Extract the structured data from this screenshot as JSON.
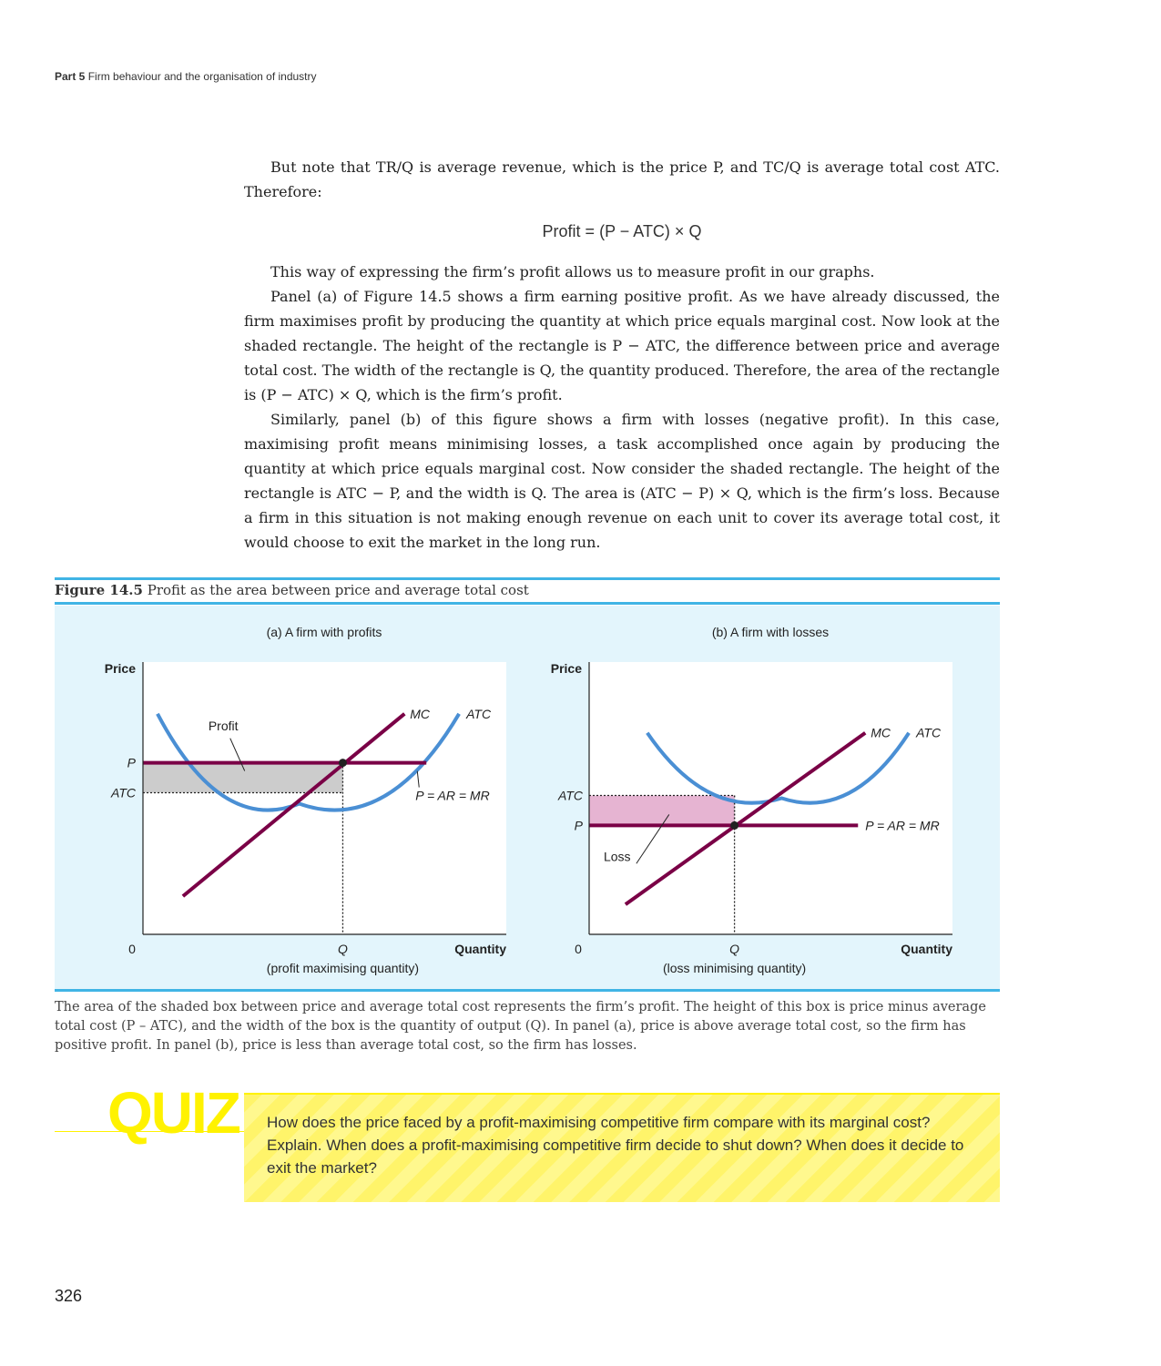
{
  "running_head": {
    "part": "Part 5",
    "title": "Firm behaviour and the organisation of industry"
  },
  "body": {
    "p1": "But note that TR/Q is average revenue, which is the price P, and TC/Q is average total cost ATC. Therefore:",
    "equation": "Profit = (P − ATC) × Q",
    "p2": "This way of expressing the firm’s profit allows us to measure profit in our graphs.",
    "p3": "Panel (a) of Figure 14.5 shows a firm earning positive profit. As we have already discussed, the firm maximises profit by producing the quantity at which price equals marginal cost. Now look at the shaded rectangle. The height of the rectangle is P − ATC, the difference between price and average total cost. The width of the rectangle is Q, the quantity produced. Therefore, the area of the rectangle is (P − ATC) × Q, which is the firm’s profit.",
    "p4": "Similarly, panel (b) of this figure shows a firm with losses (negative profit). In this case, maximising profit means minimising losses, a task accomplished once again by producing the quantity at which price equals marginal cost. Now consider the shaded rectangle. The height of the rectangle is ATC − P, and the width is Q. The area is (ATC − P) × Q, which is the firm’s loss. Because a firm in this situation is not making enough revenue on each unit to cover its average total cost, it would choose to exit the market in the long run."
  },
  "figure": {
    "number": "Figure 14.5",
    "title": "Profit as the area between price and average total cost",
    "caption": "The area of the shaded box between price and average total cost represents the firm’s profit. The height of this box is price minus average total cost (P – ATC), and the width of the box is the quantity of output (Q). In panel (a), price is above average total cost, so the firm has positive profit. In panel (b), price is less than average total cost, so the firm has losses.",
    "colors": {
      "panel_bg": "#e3f5fc",
      "rule": "#40b4e5",
      "mc_and_price": "#7a0046",
      "atc": "#4a8fd4",
      "profit_fill": "#cccccc",
      "loss_fill": "#e6b4d2"
    }
  },
  "chart_data": [
    {
      "type": "line",
      "title": "(a) A firm with profits",
      "ylabel": "Price",
      "xlabel": "Quantity",
      "origin_label": "0",
      "x_tick": "Q",
      "x_tick_note": "(profit maximising quantity)",
      "y_ticks": [
        "P",
        "ATC"
      ],
      "series": [
        {
          "name": "MC"
        },
        {
          "name": "ATC"
        },
        {
          "name": "P = AR = MR"
        }
      ],
      "region_label": "Profit",
      "ylim": [
        0,
        100
      ],
      "xlim": [
        0,
        100
      ],
      "values": {
        "P": 63,
        "ATC": 52,
        "Q": 55,
        "ATC_min_x": 43,
        "ATC_min_y": 48
      }
    },
    {
      "type": "line",
      "title": "(b) A firm with losses",
      "ylabel": "Price",
      "xlabel": "Quantity",
      "origin_label": "0",
      "x_tick": "Q",
      "x_tick_note": "(loss minimising quantity)",
      "y_ticks": [
        "ATC",
        "P"
      ],
      "series": [
        {
          "name": "MC"
        },
        {
          "name": "ATC"
        },
        {
          "name": "P = AR = MR"
        }
      ],
      "region_label": "Loss",
      "ylim": [
        0,
        100
      ],
      "xlim": [
        0,
        100
      ],
      "values": {
        "P": 40,
        "ATC": 51,
        "Q": 40,
        "ATC_min_x": 53,
        "ATC_min_y": 50
      }
    }
  ],
  "quiz": {
    "label": "QUIZ",
    "text": "How does the price faced by a profit-maximising competitive firm compare with its marginal cost? Explain. When does a profit-maximising competitive firm decide to shut down? When does it decide to exit the market?"
  },
  "page_number": "326"
}
